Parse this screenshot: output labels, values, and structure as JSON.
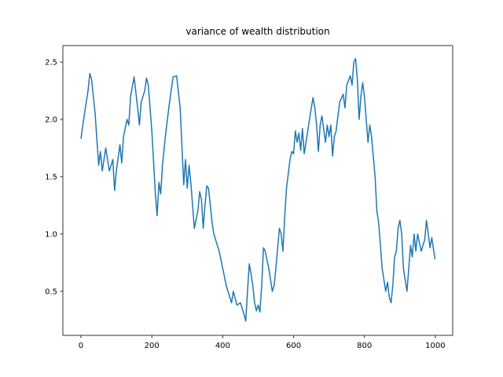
{
  "chart_data": {
    "type": "line",
    "title": "variance of wealth distribution",
    "x": [
      0,
      10,
      20,
      25,
      30,
      40,
      50,
      55,
      60,
      70,
      80,
      90,
      95,
      100,
      110,
      115,
      120,
      130,
      135,
      140,
      150,
      160,
      165,
      170,
      180,
      185,
      190,
      200,
      210,
      215,
      220,
      225,
      230,
      240,
      250,
      260,
      270,
      280,
      290,
      295,
      300,
      305,
      310,
      320,
      330,
      335,
      340,
      345,
      350,
      355,
      360,
      370,
      375,
      380,
      390,
      400,
      410,
      420,
      425,
      430,
      440,
      450,
      460,
      465,
      470,
      475,
      480,
      485,
      490,
      495,
      500,
      505,
      510,
      515,
      520,
      530,
      540,
      545,
      550,
      560,
      565,
      570,
      575,
      580,
      590,
      595,
      600,
      605,
      610,
      615,
      620,
      625,
      630,
      640,
      650,
      655,
      660,
      665,
      670,
      675,
      680,
      690,
      695,
      700,
      705,
      710,
      715,
      720,
      730,
      740,
      745,
      750,
      760,
      765,
      770,
      775,
      780,
      785,
      790,
      795,
      800,
      810,
      815,
      820,
      830,
      835,
      840,
      850,
      860,
      865,
      870,
      875,
      880,
      885,
      890,
      895,
      900,
      905,
      910,
      915,
      920,
      930,
      935,
      940,
      945,
      950,
      960,
      970,
      975,
      980,
      985,
      990,
      999
    ],
    "series": [
      {
        "name": "variance",
        "color": "#1f77b4",
        "values": [
          1.83,
          2.05,
          2.25,
          2.4,
          2.35,
          2.05,
          1.6,
          1.72,
          1.55,
          1.75,
          1.55,
          1.65,
          1.38,
          1.55,
          1.78,
          1.62,
          1.85,
          2.0,
          1.95,
          2.2,
          2.37,
          2.1,
          1.95,
          2.15,
          2.25,
          2.36,
          2.3,
          1.9,
          1.35,
          1.16,
          1.45,
          1.35,
          1.6,
          1.9,
          2.15,
          2.37,
          2.38,
          2.1,
          1.43,
          1.65,
          1.4,
          1.6,
          1.45,
          1.05,
          1.2,
          1.37,
          1.3,
          1.05,
          1.25,
          1.42,
          1.4,
          1.1,
          1.0,
          0.95,
          0.85,
          0.7,
          0.55,
          0.45,
          0.4,
          0.5,
          0.38,
          0.4,
          0.3,
          0.24,
          0.5,
          0.74,
          0.65,
          0.55,
          0.4,
          0.33,
          0.38,
          0.32,
          0.55,
          0.88,
          0.85,
          0.7,
          0.5,
          0.55,
          0.7,
          1.05,
          1.0,
          0.85,
          1.15,
          1.4,
          1.65,
          1.72,
          1.7,
          1.9,
          1.8,
          1.88,
          1.73,
          1.92,
          1.7,
          1.9,
          2.1,
          2.19,
          2.1,
          1.95,
          1.72,
          1.95,
          2.03,
          1.8,
          1.95,
          1.85,
          1.95,
          1.68,
          1.85,
          1.9,
          2.15,
          2.22,
          2.1,
          2.3,
          2.38,
          2.3,
          2.5,
          2.53,
          2.35,
          2.0,
          2.2,
          2.32,
          2.2,
          1.8,
          1.95,
          1.85,
          1.5,
          1.2,
          1.1,
          0.7,
          0.5,
          0.58,
          0.45,
          0.4,
          0.55,
          0.8,
          0.85,
          1.05,
          1.12,
          1.0,
          0.7,
          0.6,
          0.5,
          0.9,
          0.8,
          1.0,
          0.85,
          1.0,
          0.85,
          0.95,
          1.12,
          1.0,
          0.88,
          0.97,
          0.78
        ]
      }
    ],
    "xlim": [
      -51,
      1049
    ],
    "ylim": [
      0.116,
      2.644
    ],
    "xticks": [
      0,
      200,
      400,
      600,
      800,
      1000
    ],
    "yticks": [
      0.5,
      {
        "value": 1.0,
        "label": "1.0"
      },
      1.5,
      {
        "value": 2.0,
        "label": "2.0"
      },
      2.5
    ]
  }
}
